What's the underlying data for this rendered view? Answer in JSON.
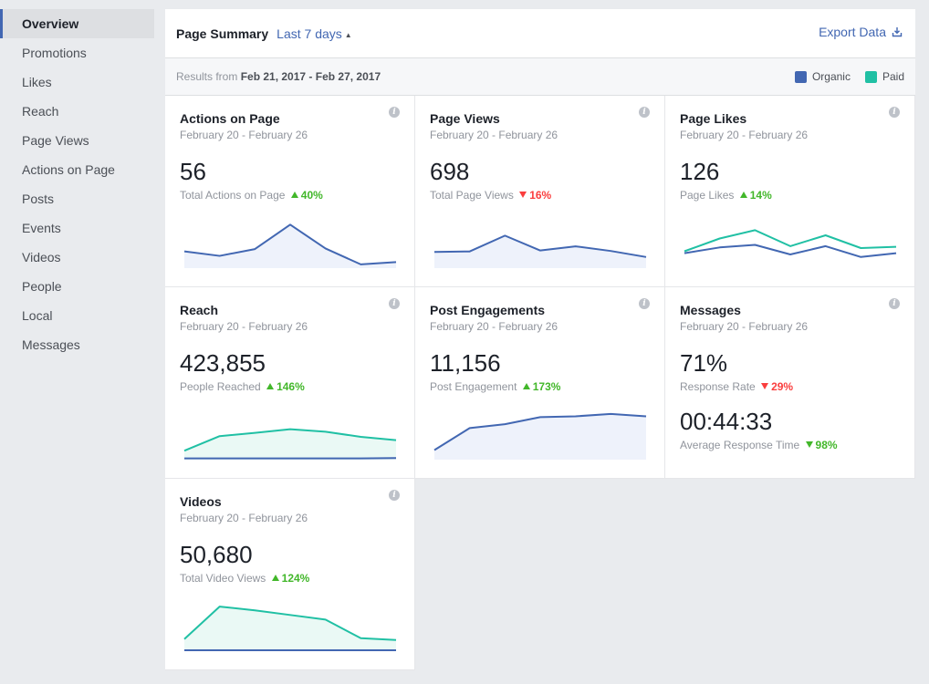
{
  "sidebar": {
    "items": [
      {
        "label": "Overview",
        "active": true
      },
      {
        "label": "Promotions"
      },
      {
        "label": "Likes"
      },
      {
        "label": "Reach"
      },
      {
        "label": "Page Views"
      },
      {
        "label": "Actions on Page"
      },
      {
        "label": "Posts"
      },
      {
        "label": "Events"
      },
      {
        "label": "Videos"
      },
      {
        "label": "People"
      },
      {
        "label": "Local"
      },
      {
        "label": "Messages"
      }
    ]
  },
  "header": {
    "title": "Page Summary",
    "range": "Last 7 days",
    "export_label": "Export Data"
  },
  "subheader": {
    "results_prefix": "Results from",
    "results_range": "Feb 21, 2017 - Feb 27, 2017",
    "legend": [
      {
        "label": "Organic",
        "color": "#4267b2"
      },
      {
        "label": "Paid",
        "color": "#20c0a4"
      }
    ]
  },
  "colors": {
    "organic": "#4267b2",
    "paid": "#20c0a4",
    "up": "#42b72a",
    "down": "#fa3e3e"
  },
  "cards": [
    {
      "title": "Actions on Page",
      "date": "February 20 - February 26",
      "value": "56",
      "label": "Total Actions on Page",
      "change": "40%",
      "dir": "up",
      "chart": {
        "type": "organic",
        "organic": [
          28,
          20,
          32,
          75,
          33,
          5,
          9
        ],
        "max": 90
      }
    },
    {
      "title": "Page Views",
      "date": "February 20 - February 26",
      "value": "698",
      "label": "Total Page Views",
      "change": "16%",
      "dir": "down",
      "chart": {
        "type": "organic",
        "organic": [
          33,
          34,
          68,
          36,
          45,
          35,
          22
        ],
        "max": 110
      }
    },
    {
      "title": "Page Likes",
      "date": "February 20 - February 26",
      "value": "126",
      "label": "Page Likes",
      "change": "14%",
      "dir": "up",
      "chart": {
        "type": "both",
        "organic": [
          22,
          31,
          35,
          20,
          33,
          16,
          22
        ],
        "paid": [
          25,
          45,
          58,
          33,
          50,
          30,
          32
        ],
        "max": 80
      }
    },
    {
      "title": "Reach",
      "date": "February 20 - February 26",
      "value": "423,855",
      "label": "People Reached",
      "change": "146%",
      "dir": "up",
      "chart": {
        "type": "paidfill",
        "organic": [
          1,
          1,
          1,
          1,
          1,
          1,
          2
        ],
        "paid": [
          22,
          62,
          71,
          81,
          74,
          60,
          51
        ],
        "max": 140
      }
    },
    {
      "title": "Post Engagements",
      "date": "February 20 - February 26",
      "value": "11,156",
      "label": "Post Engagement",
      "change": "173%",
      "dir": "up",
      "chart": {
        "type": "organic",
        "organic": [
          22,
          78,
          88,
          106,
          108,
          114,
          108
        ],
        "max": 130
      }
    },
    {
      "title": "Messages",
      "date": "February 20 - February 26",
      "value": "71%",
      "label": "Response Rate",
      "change": "29%",
      "dir": "down",
      "second_value": "00:44:33",
      "second_label": "Average Response Time",
      "second_change": "98%",
      "second_dir": "down"
    },
    {
      "title": "Videos",
      "date": "February 20 - February 26",
      "value": "50,680",
      "label": "Total Video Views",
      "change": "124%",
      "dir": "up",
      "chart": {
        "type": "paidfill",
        "organic": [
          0,
          0,
          0,
          0,
          0,
          0,
          0
        ],
        "paid": [
          12,
          47,
          43,
          38,
          33,
          13,
          11
        ],
        "max": 55
      }
    }
  ]
}
